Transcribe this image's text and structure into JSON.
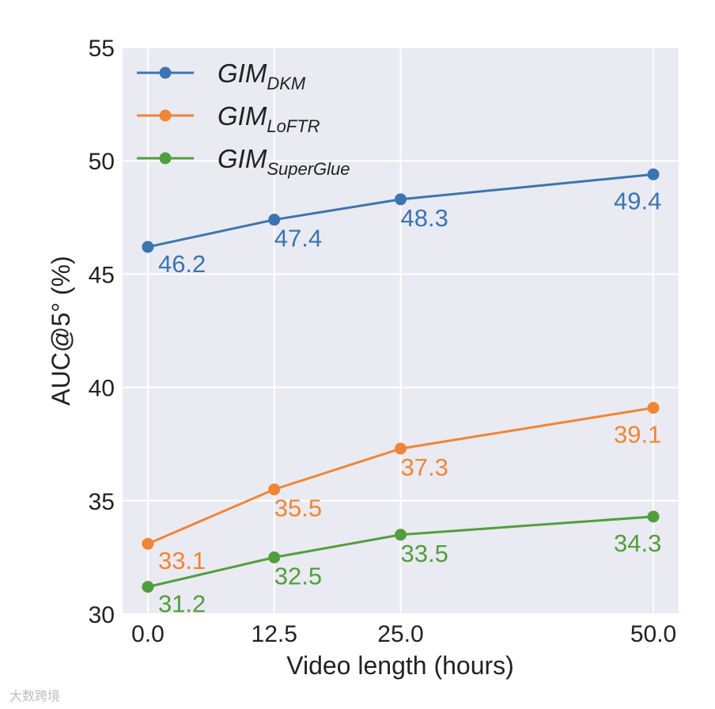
{
  "chart_data": {
    "type": "line",
    "x": [
      0.0,
      12.5,
      25.0,
      50.0
    ],
    "x_tick_labels": [
      "0.0",
      "12.5",
      "25.0",
      "50.0"
    ],
    "xlabel": "Video length (hours)",
    "ylabel": "AUC@5° (%)",
    "xlim": [
      -2.5,
      52.5
    ],
    "ylim": [
      30,
      55
    ],
    "y_ticks": [
      30,
      35,
      40,
      45,
      50,
      55
    ],
    "grid": true,
    "legend_position": "top-left",
    "series": [
      {
        "name": "GIM",
        "name_sub": "DKM",
        "color": "#3b75af",
        "values": [
          46.2,
          47.4,
          48.3,
          49.4
        ],
        "labels": [
          "46.2",
          "47.4",
          "48.3",
          "49.4"
        ]
      },
      {
        "name": "GIM",
        "name_sub": "LoFTR",
        "color": "#ef8636",
        "values": [
          33.1,
          35.5,
          37.3,
          39.1
        ],
        "labels": [
          "33.1",
          "35.5",
          "37.3",
          "39.1"
        ]
      },
      {
        "name": "GIM",
        "name_sub": "SuperGlue",
        "color": "#519e3e",
        "values": [
          31.2,
          32.5,
          33.5,
          34.3
        ],
        "labels": [
          "31.2",
          "32.5",
          "33.5",
          "34.3"
        ]
      }
    ]
  },
  "watermark": "大数跨境"
}
